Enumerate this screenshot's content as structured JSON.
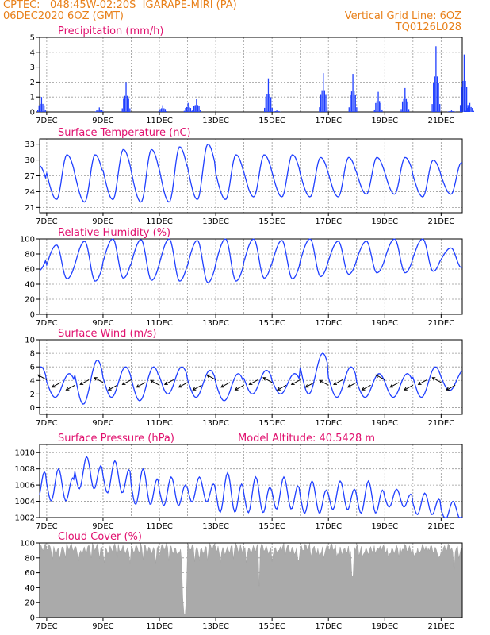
{
  "header": {
    "source": "CPTEC:",
    "coords": "048:45W-02:20S",
    "location": "IGARAPE-MIRI (PA)",
    "date": "06DEC2020 6OZ (GMT)",
    "grid_note": "Vertical Grid Line: 6OZ",
    "model": "TQ0126L028"
  },
  "colors": {
    "header": "#e8801a",
    "title": "#e0106e",
    "series": "#1f3fff",
    "cloud": "#aaaaaa",
    "grid": "#999999"
  },
  "chart_data": [
    {
      "type": "bar",
      "title": "Precipitation (mm/h)",
      "ylim": [
        0,
        5
      ],
      "yticks": [
        "0",
        "1",
        "2",
        "3",
        "4",
        "5"
      ],
      "xlabels": [
        "7DEC",
        "9DEC",
        "11DEC",
        "13DEC",
        "15DEC",
        "17DEC",
        "19DEC",
        "21DEC"
      ],
      "bursts": [
        {
          "day": 0.05,
          "peak": 1.0
        },
        {
          "day": 2.1,
          "peak": 0.3
        },
        {
          "day": 3.05,
          "peak": 2.0
        },
        {
          "day": 4.35,
          "peak": 0.45
        },
        {
          "day": 5.25,
          "peak": 0.6
        },
        {
          "day": 5.55,
          "peak": 0.85
        },
        {
          "day": 8.1,
          "peak": 2.25
        },
        {
          "day": 8.4,
          "peak": 0.1
        },
        {
          "day": 10.05,
          "peak": 2.6
        },
        {
          "day": 11.1,
          "peak": 2.55
        },
        {
          "day": 12.0,
          "peak": 1.35
        },
        {
          "day": 12.95,
          "peak": 1.6
        },
        {
          "day": 14.05,
          "peak": 4.4
        },
        {
          "day": 14.6,
          "peak": 0.1
        },
        {
          "day": 15.05,
          "peak": 3.85
        },
        {
          "day": 15.25,
          "peak": 0.6
        }
      ]
    },
    {
      "type": "line",
      "title": "Surface Temperature (nC)",
      "ylim": [
        20,
        34
      ],
      "yticks": [
        "21",
        "24",
        "27",
        "30",
        "33"
      ],
      "ytick_values": [
        21,
        24,
        27,
        30,
        33
      ],
      "xlabels": [
        "7DEC",
        "9DEC",
        "11DEC",
        "13DEC",
        "15DEC",
        "17DEC",
        "19DEC",
        "21DEC"
      ],
      "daily_min": [
        21.5,
        22.5,
        22.0,
        22.5,
        22.0,
        22.0,
        22.5,
        22.5,
        23.0,
        23.0,
        23.0,
        23.0,
        23.5,
        23.5,
        23.0,
        23.5
      ],
      "daily_max": [
        29.0,
        31.0,
        31.0,
        32.0,
        32.0,
        32.5,
        33.0,
        31.0,
        31.0,
        31.0,
        30.5,
        30.5,
        30.5,
        30.5,
        30.0,
        29.5
      ]
    },
    {
      "type": "line",
      "title": "Relative Humidity (%)",
      "ylim": [
        0,
        100
      ],
      "yticks": [
        "0",
        "20",
        "40",
        "60",
        "80",
        "100"
      ],
      "ytick_values": [
        0,
        20,
        40,
        60,
        80,
        100
      ],
      "xlabels": [
        "7DEC",
        "9DEC",
        "11DEC",
        "13DEC",
        "15DEC",
        "17DEC",
        "19DEC",
        "21DEC"
      ],
      "daily_min": [
        58,
        47,
        44,
        48,
        45,
        44,
        42,
        44,
        48,
        47,
        50,
        53,
        55,
        55,
        57,
        62
      ],
      "daily_max": [
        100,
        92,
        97,
        100,
        99,
        100,
        98,
        100,
        100,
        98,
        100,
        97,
        97,
        100,
        100,
        88
      ]
    },
    {
      "type": "line",
      "title": "Surface Wind (m/s)",
      "ylim": [
        -1,
        10
      ],
      "yticks": [
        "0",
        "2",
        "4",
        "6",
        "8",
        "10"
      ],
      "ytick_values": [
        0,
        2,
        4,
        6,
        8,
        10
      ],
      "xlabels": [
        "7DEC",
        "9DEC",
        "11DEC",
        "13DEC",
        "15DEC",
        "17DEC",
        "19DEC",
        "21DEC"
      ],
      "daily_min": [
        1.0,
        1.5,
        0.5,
        1.5,
        1.0,
        2.0,
        1.5,
        1.0,
        2.0,
        2.0,
        2.0,
        1.5,
        1.5,
        1.5,
        1.5,
        2.5
      ],
      "daily_max": [
        6.0,
        5.0,
        7.0,
        6.0,
        6.0,
        6.0,
        5.5,
        5.0,
        5.5,
        5.0,
        8.0,
        6.0,
        5.0,
        5.0,
        6.0,
        5.5
      ]
    },
    {
      "type": "line",
      "title": "Surface Pressure (hPa)",
      "subtitle": "Model Altitude: 40.5428 m",
      "ylim": [
        1002,
        1011
      ],
      "yticks": [
        "1002",
        "1004",
        "1006",
        "1008",
        "1010"
      ],
      "ytick_values": [
        1002,
        1004,
        1006,
        1008,
        1010
      ],
      "xlabels": [
        "7DEC",
        "9DEC",
        "11DEC",
        "13DEC",
        "15DEC",
        "17DEC",
        "19DEC",
        "21DEC"
      ],
      "daily_min": [
        1003.5,
        1003.5,
        1005.0,
        1004.5,
        1003.0,
        1003.0,
        1003.5,
        1002.0,
        1002.0,
        1002.5,
        1002.0,
        1002.5,
        1002.0,
        1003.0,
        1002.0,
        1001.5
      ],
      "daily_max": [
        1009.0,
        1008.0,
        1009.5,
        1009.0,
        1008.0,
        1007.0,
        1007.0,
        1007.5,
        1007.0,
        1007.0,
        1006.5,
        1006.5,
        1006.5,
        1005.5,
        1005.0,
        1004.0
      ]
    },
    {
      "type": "area",
      "title": "Cloud Cover (%)",
      "ylim": [
        0,
        100
      ],
      "yticks": [
        "0",
        "20",
        "40",
        "60",
        "80",
        "100"
      ],
      "ytick_values": [
        0,
        20,
        40,
        60,
        80,
        100
      ],
      "xlabels": [
        "7DEC",
        "9DEC",
        "11DEC",
        "13DEC",
        "15DEC",
        "17DEC",
        "19DEC",
        "21DEC"
      ],
      "base_level": 92,
      "dips": [
        {
          "day": 5.1,
          "value": 25
        },
        {
          "day": 5.15,
          "value": 5
        },
        {
          "day": 5.2,
          "value": 30
        },
        {
          "day": 7.8,
          "value": 42
        },
        {
          "day": 11.1,
          "value": 55
        },
        {
          "day": 14.7,
          "value": 60
        },
        {
          "day": 15.3,
          "value": 60
        }
      ]
    }
  ]
}
